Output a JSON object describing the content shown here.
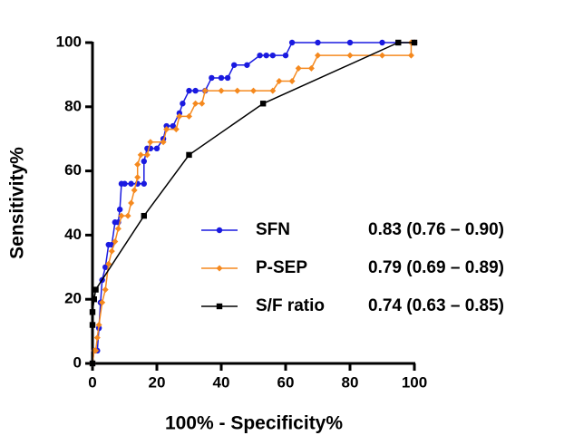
{
  "chart_data": {
    "type": "line",
    "xlabel": "100% - Specificity%",
    "ylabel": "Sensitivity%",
    "xlim": [
      0,
      100
    ],
    "ylim": [
      0,
      100
    ],
    "xticks": [
      0,
      20,
      40,
      60,
      80,
      100
    ],
    "yticks": [
      0,
      20,
      40,
      60,
      80,
      100
    ],
    "series": [
      {
        "name": "SFN",
        "auc_label": "0.83 (0.76 – 0.90)",
        "color": "#1a1ae0",
        "marker": "circle",
        "x": [
          0,
          0.5,
          1.5,
          2,
          2.5,
          3,
          4,
          5,
          6,
          7,
          8,
          8.5,
          9,
          10,
          12,
          14,
          16,
          16,
          17,
          18,
          20,
          22,
          23,
          25,
          27,
          28,
          30,
          32,
          35,
          37,
          40,
          42,
          44,
          48,
          52,
          54,
          56,
          60,
          62,
          70,
          80,
          90,
          100
        ],
        "values": [
          0,
          4,
          4,
          11,
          19,
          26,
          30,
          37,
          37,
          44,
          44,
          48,
          56,
          56,
          56,
          56,
          56,
          63,
          67,
          67,
          67,
          70,
          74,
          74,
          78,
          81,
          85,
          85,
          85,
          89,
          89,
          89,
          93,
          93,
          96,
          96,
          96,
          96,
          100,
          100,
          100,
          100,
          100
        ]
      },
      {
        "name": "P-SEP",
        "auc_label": "0.79 (0.69 – 0.89)",
        "color": "#f5891e",
        "marker": "diamond",
        "x": [
          0,
          0.5,
          1,
          1.5,
          2,
          3,
          4,
          5,
          6,
          7,
          8,
          9,
          11,
          12,
          13,
          14,
          14,
          15,
          17,
          18,
          22,
          23,
          26,
          27,
          30,
          32,
          34,
          35,
          40,
          45,
          50,
          56,
          58,
          62,
          64,
          68,
          70,
          80,
          90,
          99,
          99,
          100
        ],
        "values": [
          0,
          4,
          4,
          8,
          12,
          19,
          23,
          31,
          35,
          38,
          42,
          46,
          46,
          50,
          54,
          58,
          62,
          65,
          65,
          69,
          69,
          73,
          73,
          77,
          77,
          81,
          81,
          85,
          85,
          85,
          85,
          85,
          88,
          88,
          92,
          92,
          96,
          96,
          96,
          96,
          100,
          100
        ]
      },
      {
        "name": "S/F ratio",
        "auc_label": "0.74 (0.63 – 0.85)",
        "color": "#000000",
        "marker": "square",
        "x": [
          0,
          0,
          0,
          0.5,
          1,
          16,
          30,
          53,
          95,
          100
        ],
        "values": [
          0,
          12,
          16,
          20,
          23,
          46,
          65,
          81,
          100,
          100
        ]
      }
    ]
  }
}
